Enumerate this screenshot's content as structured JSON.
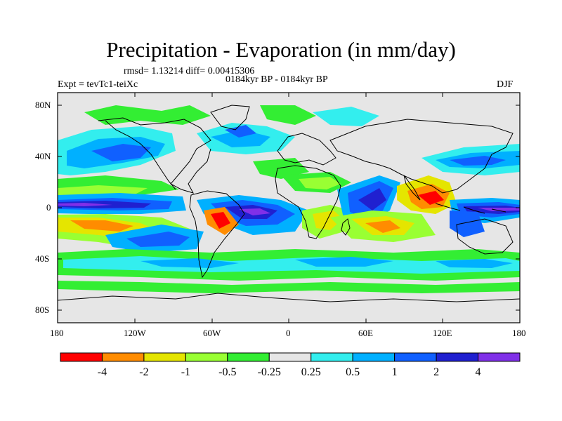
{
  "title": "Precipitation - Evaporation (in mm/day)",
  "stats_text": "rmsd= 1.13214 diff= 0.00415306",
  "period_text": "0184kyr BP - 0184kyr BP",
  "experiment_text": "Expt = tevTc1-teiXc",
  "season_text": "DJF",
  "axes": {
    "lat_labels": [
      "80N",
      "40N",
      "0",
      "40S",
      "80S"
    ],
    "lon_labels": [
      "180",
      "120W",
      "60W",
      "0",
      "60E",
      "120E",
      "180"
    ]
  },
  "colorbar": {
    "labels": [
      "-4",
      "-2",
      "-1",
      "-0.5",
      "-0.25",
      "0.25",
      "0.5",
      "1",
      "2",
      "4"
    ],
    "colors": [
      "#ff0000",
      "#ff8c00",
      "#e5e500",
      "#99ff33",
      "#33ee33",
      "#e6e6e6",
      "#33eeee",
      "#00b0ff",
      "#1060ff",
      "#2020d0",
      "#8030e8"
    ]
  }
}
